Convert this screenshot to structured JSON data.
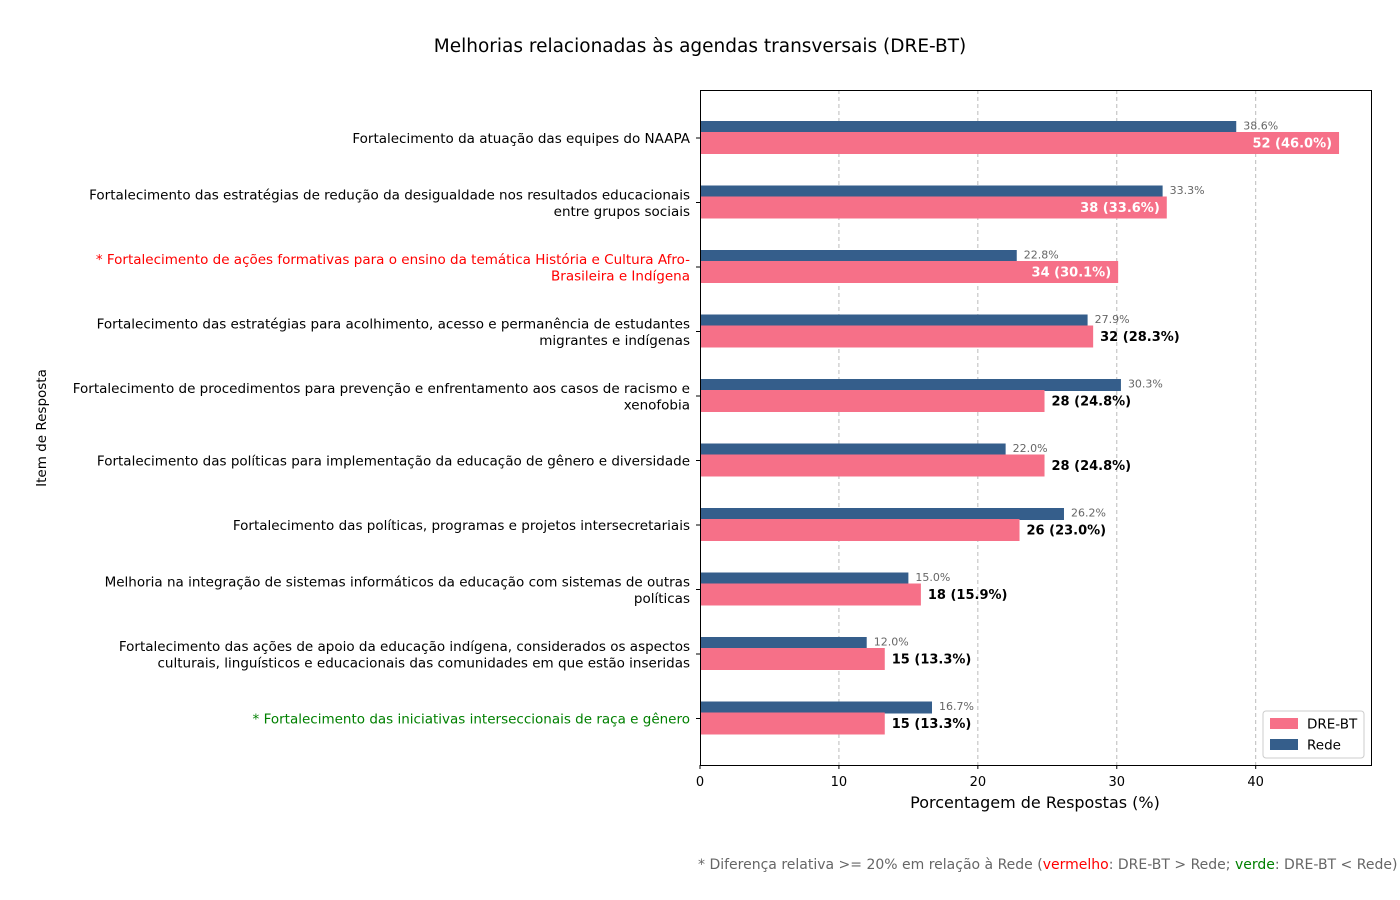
{
  "chart_data": {
    "type": "bar",
    "orientation": "horizontal",
    "title": "Melhorias relacionadas às agendas transversais (DRE-BT)",
    "xlabel": "Porcentagem de Respostas (%)",
    "ylabel": "Item de Resposta",
    "xlim": [
      0,
      48.3
    ],
    "xticks": [
      0,
      10,
      20,
      30,
      40
    ],
    "grid": "x, dashed",
    "legend_position": "lower-right",
    "categories": [
      {
        "lines": [
          "Fortalecimento da atuação das equipes do NAAPA"
        ],
        "flag": ""
      },
      {
        "lines": [
          "Fortalecimento das estratégias de redução da desigualdade nos resultados educacionais",
          "entre grupos sociais"
        ],
        "flag": ""
      },
      {
        "lines": [
          "* Fortalecimento de ações formativas para o ensino da temática História e Cultura Afro-",
          "Brasileira e Indígena"
        ],
        "flag": "red"
      },
      {
        "lines": [
          "Fortalecimento das estratégias para acolhimento, acesso e permanência de estudantes",
          "migrantes e indígenas"
        ],
        "flag": ""
      },
      {
        "lines": [
          "Fortalecimento de procedimentos para prevenção e enfrentamento aos casos de racismo e",
          "xenofobia"
        ],
        "flag": ""
      },
      {
        "lines": [
          "Fortalecimento das políticas para implementação da educação de gênero e diversidade"
        ],
        "flag": ""
      },
      {
        "lines": [
          "Fortalecimento das políticas, programas e projetos intersecretariais"
        ],
        "flag": ""
      },
      {
        "lines": [
          "Melhoria na integração de sistemas informáticos da educação com sistemas de outras",
          "políticas"
        ],
        "flag": ""
      },
      {
        "lines": [
          "Fortalecimento das ações de apoio da educação indígena, considerados os aspectos",
          "culturais, linguísticos e educacionais das comunidades em que estão inseridas"
        ],
        "flag": ""
      },
      {
        "lines": [
          "* Fortalecimento das iniciativas interseccionais de raça e gênero"
        ],
        "flag": "green"
      }
    ],
    "series": [
      {
        "name": "DRE-BT",
        "color": "#f67088",
        "values": [
          46.0,
          33.6,
          30.1,
          28.3,
          24.8,
          24.8,
          23.0,
          15.9,
          13.3,
          13.3
        ],
        "labels": [
          "52 (46.0%)",
          "38 (33.6%)",
          "34 (30.1%)",
          "32 (28.3%)",
          "28 (24.8%)",
          "28 (24.8%)",
          "26 (23.0%)",
          "18 (15.9%)",
          "15 (13.3%)",
          "15 (13.3%)"
        ],
        "label_inside": [
          true,
          true,
          true,
          false,
          false,
          false,
          false,
          false,
          false,
          false
        ]
      },
      {
        "name": "Rede",
        "color": "#355e8b",
        "values": [
          38.6,
          33.3,
          22.8,
          27.9,
          30.3,
          22.0,
          26.2,
          15.0,
          12.0,
          16.7
        ],
        "labels": [
          "38.6%",
          "33.3%",
          "22.8%",
          "27.9%",
          "30.3%",
          "22.0%",
          "26.2%",
          "15.0%",
          "12.0%",
          "16.7%"
        ]
      }
    ],
    "flag_colors": {
      "red": "#ff0000",
      "green": "#008000"
    }
  },
  "footnote": {
    "prefix": "* Diferença relativa >= 20% em relação à Rede (",
    "red_word": "vermelho",
    "middle": ": DRE-BT > Rede; ",
    "green_word": "verde",
    "suffix": ": DRE-BT < Rede)",
    "red_color": "#ff0000",
    "green_color": "#008000"
  }
}
